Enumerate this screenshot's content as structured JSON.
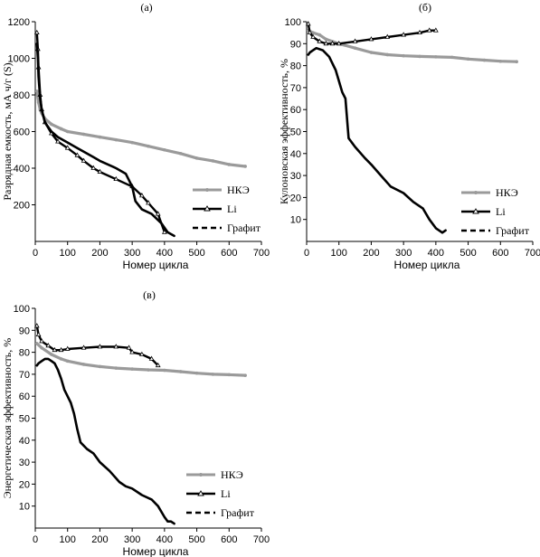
{
  "legend_labels": {
    "nke": "НКЭ",
    "li": "Li",
    "graphite": "Графит"
  },
  "colors": {
    "nke": "#9a9a9a",
    "li": "#000000",
    "graphite": "#000000"
  },
  "chart_data": [
    {
      "id": "a",
      "type": "line",
      "panel_label": "(а)",
      "xlabel": "Номер цикла",
      "ylabel": "Разрядная емкость, мА ч/г (S)",
      "xlim": [
        0,
        700
      ],
      "ylim": [
        0,
        1200
      ],
      "xticks": [
        0,
        100,
        200,
        300,
        400,
        500,
        600,
        700
      ],
      "yticks": [
        200,
        400,
        600,
        800,
        1000,
        1200
      ],
      "legend_position": "right",
      "series": [
        {
          "key": "nke",
          "name": "НКЭ",
          "x": [
            5,
            10,
            15,
            20,
            30,
            50,
            80,
            100,
            150,
            200,
            250,
            300,
            350,
            400,
            450,
            500,
            550,
            600,
            650
          ],
          "y": [
            820,
            760,
            720,
            700,
            670,
            640,
            615,
            600,
            585,
            570,
            555,
            540,
            520,
            500,
            480,
            455,
            440,
            420,
            410
          ]
        },
        {
          "key": "li",
          "name": "Li",
          "x": [
            5,
            8,
            10,
            15,
            20,
            30,
            50,
            70,
            100,
            130,
            150,
            180,
            200,
            250,
            300,
            330,
            350,
            380,
            400
          ],
          "y": [
            1140,
            1050,
            950,
            800,
            720,
            650,
            590,
            545,
            510,
            470,
            440,
            400,
            380,
            340,
            300,
            250,
            210,
            150,
            50
          ]
        },
        {
          "key": "graphite",
          "name": "Графит",
          "x": [
            5,
            8,
            10,
            15,
            20,
            30,
            50,
            70,
            100,
            130,
            150,
            180,
            200,
            250,
            280,
            300,
            310,
            330,
            360,
            390,
            410,
            430
          ],
          "y": [
            1080,
            1000,
            900,
            780,
            720,
            650,
            600,
            570,
            540,
            510,
            490,
            460,
            440,
            400,
            370,
            300,
            220,
            175,
            150,
            100,
            50,
            30
          ]
        }
      ]
    },
    {
      "id": "b",
      "type": "line",
      "panel_label": "(б)",
      "xlabel": "Номер цикла",
      "ylabel": "Кулоновская эффективность, %",
      "xlim": [
        0,
        700
      ],
      "ylim": [
        0,
        100
      ],
      "xticks": [
        0,
        100,
        200,
        300,
        400,
        500,
        600,
        700
      ],
      "yticks": [
        10,
        20,
        30,
        40,
        50,
        60,
        70,
        80,
        90,
        100
      ],
      "legend_position": "right",
      "series": [
        {
          "key": "nke",
          "name": "НКЭ",
          "x": [
            5,
            20,
            40,
            60,
            80,
            100,
            150,
            200,
            250,
            300,
            350,
            400,
            450,
            500,
            550,
            600,
            650
          ],
          "y": [
            96,
            95,
            94,
            92,
            91,
            90,
            88,
            86,
            85,
            84.5,
            84.2,
            84,
            83.8,
            83,
            82.5,
            82,
            81.8
          ]
        },
        {
          "key": "li",
          "name": "Li",
          "x": [
            5,
            10,
            20,
            40,
            60,
            80,
            100,
            150,
            200,
            250,
            300,
            350,
            380,
            400
          ],
          "y": [
            99,
            95,
            93,
            91,
            90,
            90,
            90,
            91,
            92,
            93,
            94,
            95,
            96,
            96
          ]
        },
        {
          "key": "graphite",
          "name": "Графит",
          "x": [
            5,
            10,
            20,
            30,
            50,
            70,
            90,
            110,
            120,
            130,
            150,
            180,
            200,
            230,
            260,
            300,
            330,
            360,
            380,
            400,
            420,
            430
          ],
          "y": [
            85,
            86,
            87,
            88,
            87,
            84,
            78,
            68,
            65,
            47,
            43,
            38,
            35,
            30,
            25,
            22,
            18,
            15,
            10,
            6,
            4,
            5
          ]
        }
      ]
    },
    {
      "id": "c",
      "type": "line",
      "panel_label": "(в)",
      "xlabel": "Номер цикла",
      "ylabel": "Энергетическая эффективность, %",
      "xlim": [
        0,
        700
      ],
      "ylim": [
        0,
        100
      ],
      "xticks": [
        0,
        100,
        200,
        300,
        400,
        500,
        600,
        700
      ],
      "yticks": [
        10,
        20,
        30,
        40,
        50,
        60,
        70,
        80,
        90,
        100
      ],
      "legend_position": "right",
      "series": [
        {
          "key": "nke",
          "name": "НКЭ",
          "x": [
            5,
            20,
            50,
            80,
            100,
            150,
            200,
            250,
            300,
            350,
            400,
            450,
            500,
            550,
            600,
            650
          ],
          "y": [
            84,
            82,
            79,
            77,
            76,
            74.5,
            73.5,
            72.8,
            72.4,
            72,
            71.8,
            71.2,
            70.5,
            70,
            69.8,
            69.5
          ]
        },
        {
          "key": "li",
          "name": "Li",
          "x": [
            5,
            10,
            20,
            40,
            60,
            80,
            100,
            150,
            200,
            250,
            290,
            300,
            330,
            360,
            380
          ],
          "y": [
            92,
            88,
            85,
            83,
            81,
            81,
            81.5,
            82,
            82.5,
            82.5,
            82,
            80,
            79,
            77,
            74
          ]
        },
        {
          "key": "graphite",
          "name": "Графит",
          "x": [
            5,
            10,
            20,
            30,
            40,
            50,
            60,
            70,
            80,
            90,
            100,
            110,
            120,
            130,
            140,
            160,
            180,
            200,
            230,
            260,
            280,
            300,
            330,
            360,
            380,
            400,
            410,
            420,
            430
          ],
          "y": [
            74,
            75,
            76,
            77,
            77,
            76,
            75,
            72,
            68,
            63,
            60,
            57,
            52,
            45,
            39,
            36,
            34,
            30,
            26,
            21,
            19,
            18,
            15,
            13,
            10,
            5,
            3,
            3,
            2
          ]
        }
      ]
    }
  ]
}
